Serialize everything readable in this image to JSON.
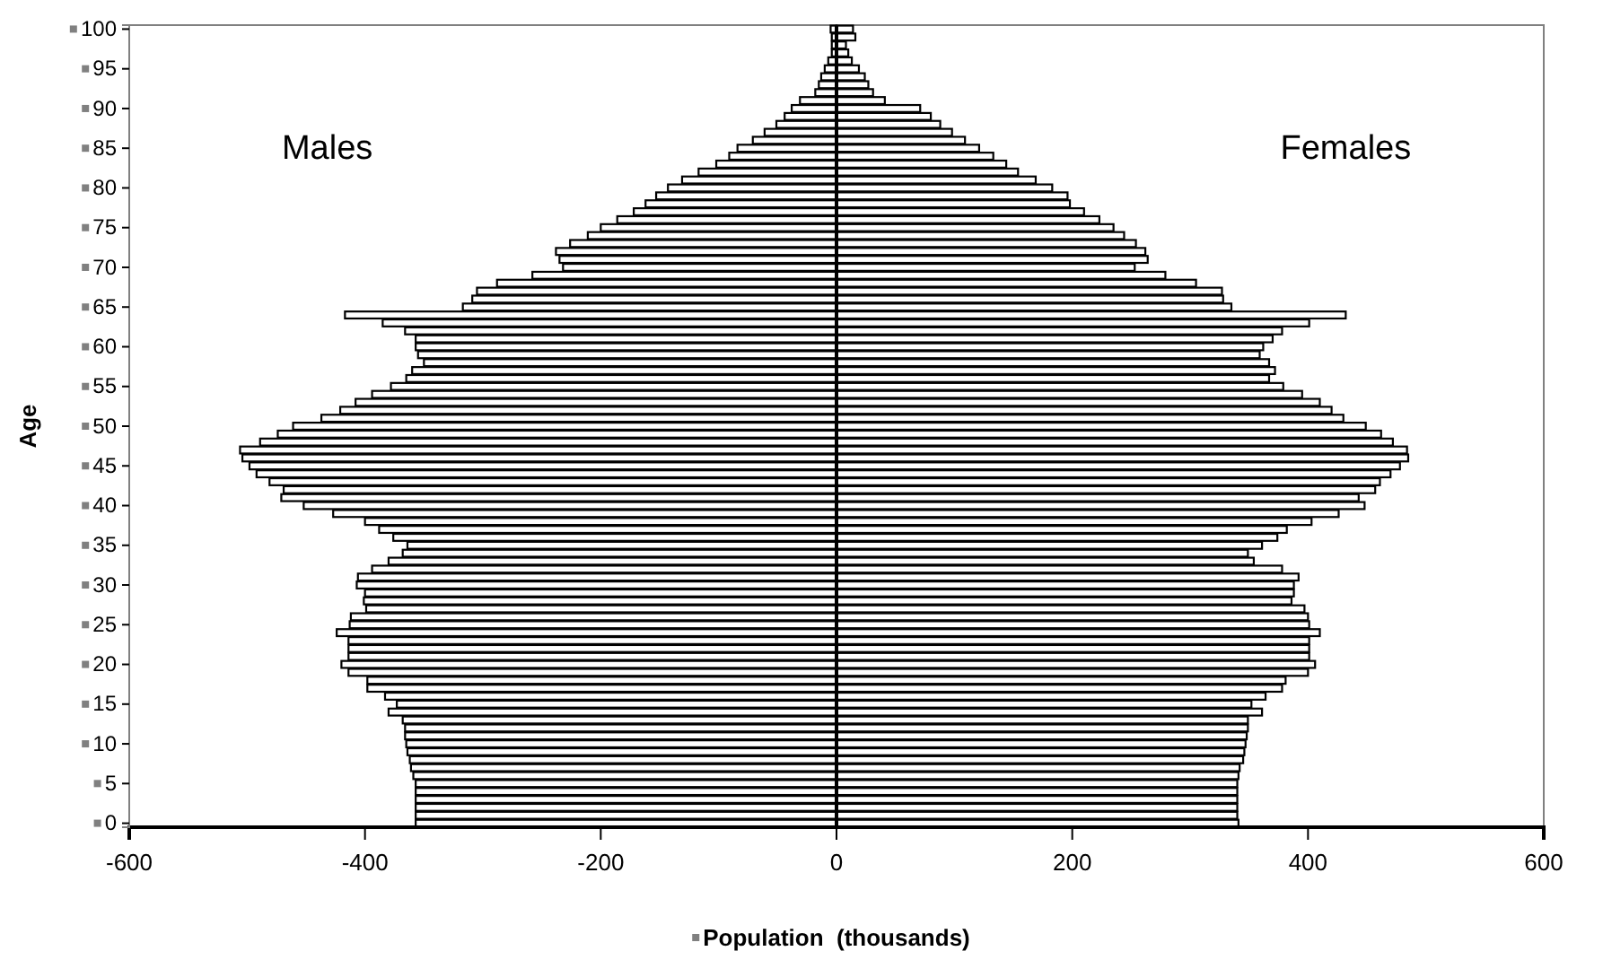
{
  "chart_data": {
    "type": "bar",
    "orientation": "horizontal",
    "ylabel": "Age",
    "xlabel": "Population  (thousands)",
    "categories": [
      "100",
      null,
      null,
      null,
      null,
      "95",
      null,
      null,
      null,
      null,
      "90",
      null,
      null,
      null,
      null,
      "85",
      null,
      null,
      null,
      null,
      "80",
      null,
      null,
      null,
      null,
      "75",
      null,
      null,
      null,
      null,
      "70",
      null,
      null,
      null,
      null,
      "65",
      null,
      null,
      null,
      null,
      "60",
      null,
      null,
      null,
      null,
      "55",
      null,
      null,
      null,
      null,
      "50",
      null,
      null,
      null,
      null,
      "45",
      null,
      null,
      null,
      null,
      "40",
      null,
      null,
      null,
      null,
      "35",
      null,
      null,
      null,
      null,
      "30",
      null,
      null,
      null,
      null,
      "25",
      null,
      null,
      null,
      null,
      "20",
      null,
      null,
      null,
      null,
      "15",
      null,
      null,
      null,
      null,
      "10",
      null,
      null,
      null,
      null,
      "5",
      null,
      null,
      null,
      null,
      "0"
    ],
    "series": [
      {
        "color": "#ffffff",
        "values": [
          -5,
          -4,
          -4,
          -4,
          -7,
          -10,
          -13,
          -15,
          -18,
          -31,
          -38,
          -44,
          -51,
          -61,
          -71,
          -84,
          -91,
          -102,
          -117,
          -131,
          -143,
          -153,
          -162,
          -172,
          -186,
          -200,
          -211,
          -226,
          -238,
          -235,
          -232,
          -258,
          -288,
          -305,
          -309,
          -317,
          -417,
          -385,
          -366,
          -357,
          -357,
          -355,
          -350,
          -360,
          -365,
          -378,
          -394,
          -408,
          -421,
          -437,
          -461,
          -474,
          -489,
          -506,
          -504,
          -498,
          -492,
          -481,
          -469,
          -471,
          -452,
          -427,
          -400,
          -388,
          -376,
          -364,
          -368,
          -380,
          -394,
          -406,
          -407,
          -400,
          -401,
          -399,
          -412,
          -413,
          -424,
          -414,
          -414,
          -414,
          -420,
          -414,
          -398,
          -398,
          -383,
          -373,
          -380,
          -368,
          -366,
          -366,
          -365,
          -364,
          -362,
          -361,
          -359,
          -357,
          -357,
          -357,
          -357,
          -357,
          -357
        ]
      },
      {
        "color": "#ffffff",
        "values": [
          14,
          16,
          8,
          10,
          13,
          19,
          24,
          27,
          31,
          41,
          71,
          80,
          88,
          98,
          109,
          121,
          133,
          144,
          154,
          169,
          183,
          196,
          198,
          210,
          223,
          235,
          244,
          254,
          262,
          264,
          253,
          279,
          305,
          327,
          328,
          335,
          432,
          401,
          378,
          370,
          362,
          359,
          367,
          372,
          367,
          379,
          395,
          410,
          420,
          430,
          449,
          462,
          472,
          484,
          485,
          478,
          470,
          461,
          457,
          443,
          448,
          426,
          403,
          382,
          374,
          361,
          349,
          354,
          378,
          392,
          388,
          388,
          386,
          397,
          400,
          401,
          410,
          401,
          401,
          401,
          406,
          400,
          381,
          378,
          364,
          352,
          361,
          349,
          349,
          348,
          347,
          346,
          345,
          342,
          341,
          340,
          340,
          340,
          340,
          340,
          341
        ]
      }
    ],
    "xlim": [
      -600,
      600
    ],
    "xticks": [
      -600,
      -400,
      -200,
      0,
      200,
      400,
      600
    ],
    "stacked": true,
    "annotations": [
      "Males",
      "Females"
    ]
  }
}
